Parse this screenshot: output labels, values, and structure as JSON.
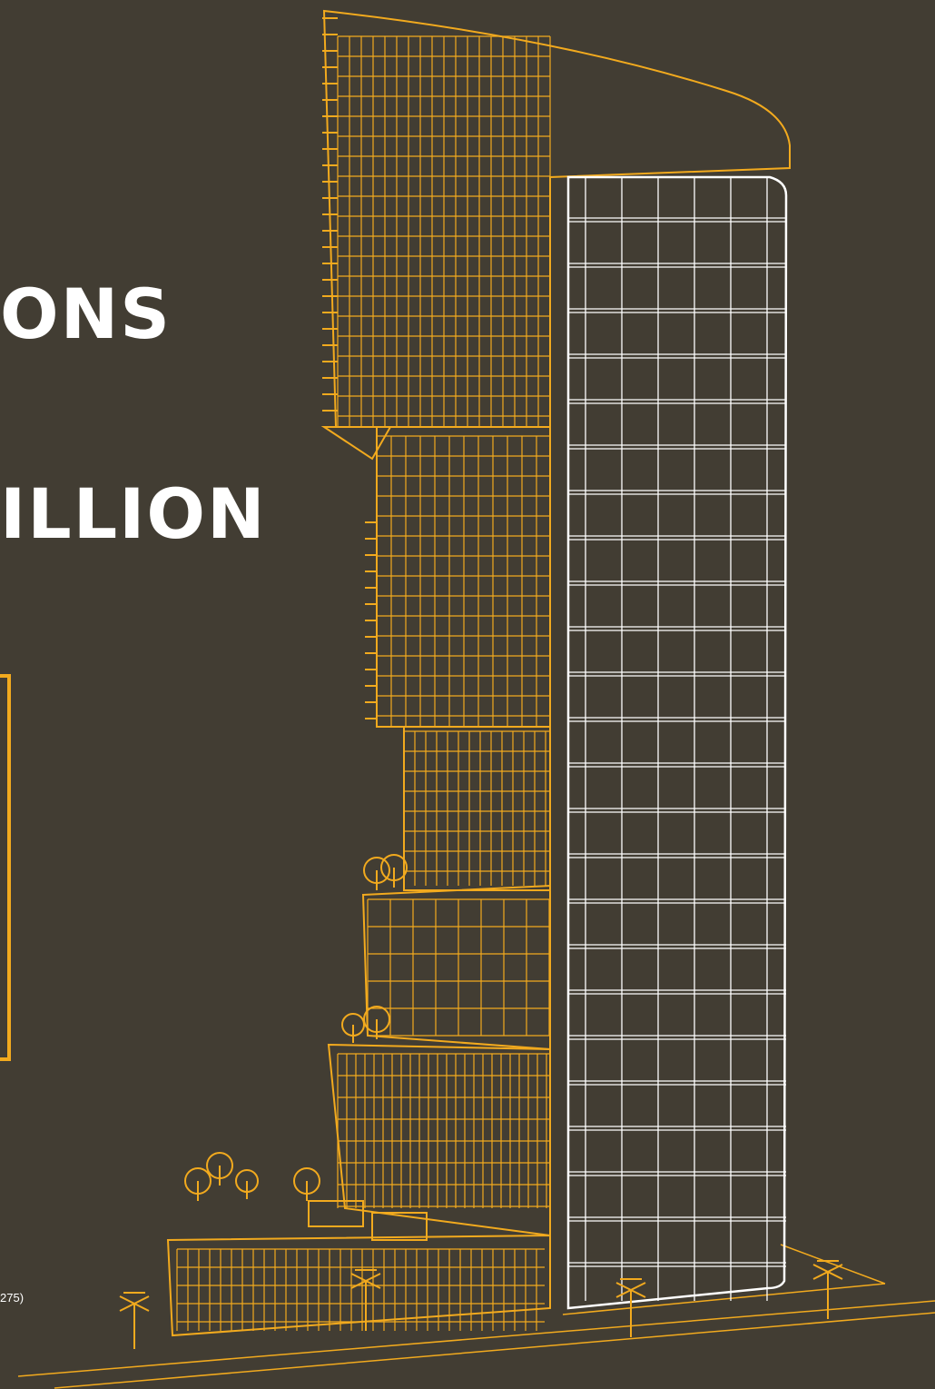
{
  "heading_line_1": "ONS",
  "heading_line_2": "ILLION",
  "footnote": "275)",
  "colors": {
    "background": "#423d33",
    "accent": "#f2aa1e",
    "text": "#ffffff"
  }
}
